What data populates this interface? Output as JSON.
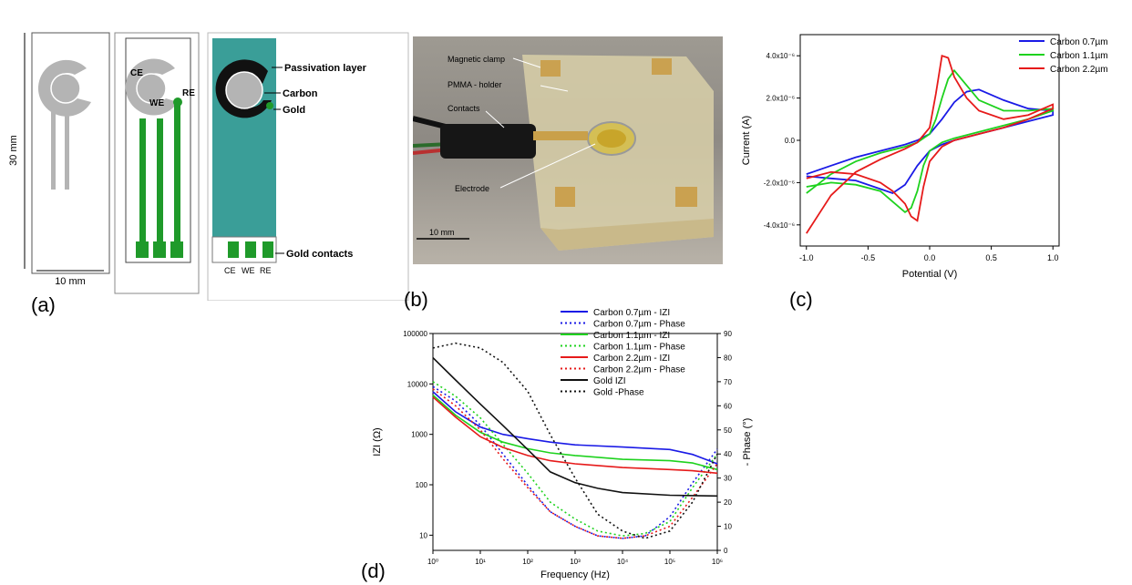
{
  "panel_labels": {
    "a": "(a)",
    "b": "(b)",
    "c": "(c)",
    "d": "(d)"
  },
  "panel_a": {
    "dim_height": "30 mm",
    "dim_width": "10 mm",
    "electrode_labels": {
      "ce": "CE",
      "we": "WE",
      "re": "RE"
    },
    "contact_labels": {
      "ce": "CE",
      "we": "WE",
      "re": "RE"
    },
    "callouts": {
      "passivation": "Passivation layer",
      "carbon": "Carbon",
      "gold": "Gold",
      "gold_contacts": "Gold contacts"
    },
    "colors": {
      "carbon": "#b4b4b4",
      "gold": "#1f9a2a",
      "passivation": "#3a9e98"
    }
  },
  "panel_b": {
    "callouts": {
      "clamp": "Magnetic clamp",
      "holder": "PMMA - holder",
      "contacts": "Contacts",
      "electrode": "Electrode"
    },
    "scalebar": "10 mm"
  },
  "chart_data": [
    {
      "type": "line",
      "id": "cv",
      "xlabel": "Potential (V)",
      "ylabel": "Current (A)",
      "xlim": [
        -1.05,
        1.05
      ],
      "ylim": [
        -5e-06,
        5e-06
      ],
      "x_ticks": [
        -1.0,
        -0.5,
        0.0,
        0.5,
        1.0
      ],
      "x_tick_labels": [
        "-1.0",
        "-0.5",
        "0.0",
        "0.5",
        "1.0"
      ],
      "y_ticks": [
        -4e-06,
        -2e-06,
        0,
        2e-06,
        4e-06
      ],
      "y_tick_labels": [
        "-4.0x10⁻⁶",
        "-2.0x10⁻⁶",
        "0.0",
        "2.0x10⁻⁶",
        "4.0x10⁻⁶"
      ],
      "legend_position": "top-right",
      "series": [
        {
          "name": "Carbon 0.7µm",
          "color": "#1a1ae6",
          "x": [
            -1.0,
            -0.8,
            -0.6,
            -0.4,
            -0.2,
            -0.1,
            0.0,
            0.1,
            0.2,
            0.3,
            0.4,
            0.6,
            0.8,
            1.0,
            1.0,
            0.8,
            0.6,
            0.4,
            0.2,
            0.1,
            0.0,
            -0.1,
            -0.2,
            -0.3,
            -0.4,
            -0.6,
            -0.8,
            -1.0
          ],
          "y": [
            -1.6e-06,
            -1.2e-06,
            -8e-07,
            -5e-07,
            -2e-07,
            0.0,
            3e-07,
            1e-06,
            1.8e-06,
            2.3e-06,
            2.4e-06,
            1.9e-06,
            1.5e-06,
            1.4e-06,
            1.2e-06,
            9e-07,
            6e-07,
            3e-07,
            0.0,
            -2e-07,
            -5e-07,
            -1.2e-06,
            -2.1e-06,
            -2.5e-06,
            -2.3e-06,
            -1.9e-06,
            -1.8e-06,
            -1.7e-06
          ]
        },
        {
          "name": "Carbon 1.1µm",
          "color": "#1ed21e",
          "x": [
            -1.0,
            -0.8,
            -0.6,
            -0.4,
            -0.2,
            -0.1,
            0.0,
            0.05,
            0.1,
            0.15,
            0.2,
            0.3,
            0.4,
            0.6,
            0.8,
            1.0,
            1.0,
            0.8,
            0.6,
            0.4,
            0.2,
            0.1,
            0.0,
            -0.05,
            -0.1,
            -0.15,
            -0.2,
            -0.3,
            -0.4,
            -0.6,
            -0.8,
            -1.0
          ],
          "y": [
            -2.5e-06,
            -1.6e-06,
            -1e-06,
            -6e-07,
            -3e-07,
            -1e-07,
            3e-07,
            1e-06,
            2e-06,
            2.9e-06,
            3.3e-06,
            2.6e-06,
            1.9e-06,
            1.4e-06,
            1.4e-06,
            1.5e-06,
            1.4e-06,
            1e-06,
            7e-07,
            4e-07,
            1e-07,
            -1e-07,
            -5e-07,
            -1.2e-06,
            -2.4e-06,
            -3.2e-06,
            -3.4e-06,
            -2.9e-06,
            -2.4e-06,
            -2.1e-06,
            -2e-06,
            -2.2e-06
          ]
        },
        {
          "name": "Carbon 2.2µm",
          "color": "#e61a1a",
          "x": [
            -1.0,
            -0.8,
            -0.6,
            -0.4,
            -0.2,
            -0.1,
            0.0,
            0.05,
            0.1,
            0.15,
            0.2,
            0.3,
            0.4,
            0.6,
            0.8,
            1.0,
            1.0,
            0.8,
            0.6,
            0.4,
            0.2,
            0.1,
            0.0,
            -0.05,
            -0.1,
            -0.15,
            -0.2,
            -0.3,
            -0.4,
            -0.6,
            -0.8,
            -1.0
          ],
          "y": [
            -4.4e-06,
            -2.6e-06,
            -1.5e-06,
            -9e-07,
            -4e-07,
            -1e-07,
            6e-07,
            2.2e-06,
            4e-06,
            3.9e-06,
            3e-06,
            2e-06,
            1.4e-06,
            1e-06,
            1.2e-06,
            1.7e-06,
            1.5e-06,
            1e-06,
            6e-07,
            3e-07,
            0.0,
            -3e-07,
            -1e-06,
            -2.2e-06,
            -3.8e-06,
            -3.6e-06,
            -3e-06,
            -2.4e-06,
            -2e-06,
            -1.6e-06,
            -1.5e-06,
            -1.8e-06
          ]
        }
      ]
    },
    {
      "type": "line",
      "id": "eis",
      "xlabel": "Frequency (Hz)",
      "ylabel": "IZI (Ω)",
      "y2label": "- Phase (°)",
      "x_scale": "log",
      "y_scale": "log",
      "xlim": [
        1,
        1000000
      ],
      "ylim": [
        5,
        100000
      ],
      "y2lim": [
        0,
        90
      ],
      "x_tick_labels": [
        "10⁰",
        "10¹",
        "10²",
        "10³",
        "10⁴",
        "10⁵",
        "10⁶"
      ],
      "y_tick_labels": [
        "10",
        "100",
        "1000",
        "10000",
        "100000"
      ],
      "y2_tick_labels": [
        "0",
        "10",
        "20",
        "30",
        "40",
        "50",
        "60",
        "70",
        "80",
        "90"
      ],
      "legend_position": "top-right",
      "series": [
        {
          "name": "Carbon 0.7µm - IZI",
          "color": "#1a1ae6",
          "dash": "solid",
          "axis": "left",
          "x": [
            1,
            3,
            10,
            30,
            100,
            300,
            1000,
            10000,
            100000,
            300000,
            1000000
          ],
          "y": [
            7000,
            2800,
            1400,
            1000,
            820,
            700,
            620,
            560,
            500,
            400,
            260
          ]
        },
        {
          "name": "Carbon 0.7µm - Phase",
          "color": "#1a1ae6",
          "dash": "dotted",
          "axis": "right",
          "x": [
            1,
            3,
            10,
            30,
            100,
            300,
            1000,
            3000,
            10000,
            30000,
            100000,
            300000,
            1000000
          ],
          "y": [
            68,
            62,
            52,
            40,
            27,
            16,
            10,
            6,
            5,
            6,
            14,
            28,
            42
          ]
        },
        {
          "name": "Carbon 1.1µm - IZI",
          "color": "#1ed21e",
          "dash": "solid",
          "axis": "left",
          "x": [
            1,
            3,
            10,
            30,
            100,
            300,
            1000,
            10000,
            100000,
            300000,
            1000000
          ],
          "y": [
            6000,
            2400,
            1100,
            700,
            520,
            430,
            380,
            320,
            300,
            270,
            200
          ]
        },
        {
          "name": "Carbon 1.1µm - Phase",
          "color": "#1ed21e",
          "dash": "dotted",
          "axis": "right",
          "x": [
            1,
            3,
            10,
            30,
            100,
            300,
            1000,
            3000,
            10000,
            30000,
            100000,
            300000,
            1000000
          ],
          "y": [
            70,
            64,
            55,
            44,
            32,
            20,
            13,
            8,
            6,
            7,
            12,
            26,
            40
          ]
        },
        {
          "name": "Carbon 2.2µm - IZI",
          "color": "#e61a1a",
          "dash": "solid",
          "axis": "left",
          "x": [
            1,
            3,
            10,
            30,
            100,
            300,
            1000,
            10000,
            100000,
            300000,
            1000000
          ],
          "y": [
            5500,
            2200,
            900,
            550,
            380,
            300,
            260,
            220,
            200,
            190,
            170
          ]
        },
        {
          "name": "Carbon 2.2µm - Phase",
          "color": "#e61a1a",
          "dash": "dotted",
          "axis": "right",
          "x": [
            1,
            3,
            10,
            30,
            100,
            300,
            1000,
            3000,
            10000,
            30000,
            100000,
            300000,
            1000000
          ],
          "y": [
            67,
            60,
            50,
            38,
            26,
            16,
            10,
            6,
            5,
            6,
            10,
            22,
            36
          ]
        },
        {
          "name": "Gold IZI",
          "color": "#111111",
          "dash": "solid",
          "axis": "left",
          "x": [
            1,
            3,
            10,
            30,
            100,
            300,
            1000,
            3000,
            10000,
            100000,
            1000000
          ],
          "y": [
            33000,
            12000,
            4000,
            1500,
            500,
            180,
            110,
            85,
            70,
            62,
            60
          ]
        },
        {
          "name": "Gold -Phase",
          "color": "#111111",
          "dash": "dotted",
          "axis": "right",
          "x": [
            1,
            3,
            10,
            30,
            100,
            300,
            1000,
            3000,
            10000,
            30000,
            100000,
            300000,
            1000000
          ],
          "y": [
            84,
            86,
            84,
            78,
            66,
            48,
            30,
            15,
            8,
            5,
            8,
            20,
            40
          ]
        }
      ]
    }
  ]
}
